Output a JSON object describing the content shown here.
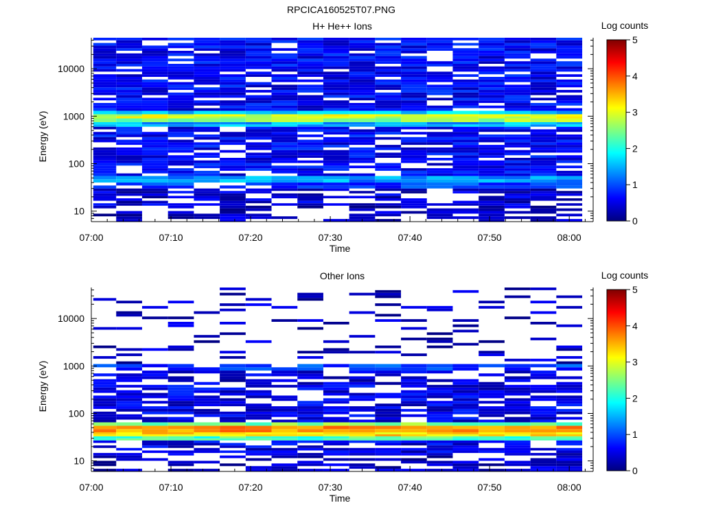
{
  "figure": {
    "title": "RPCICA160525T07.PNG"
  },
  "chart_data": [
    {
      "type": "heatmap",
      "title": "H+ He++ Ions",
      "xlabel": "Time",
      "ylabel": "Energy (eV)",
      "x_tick_labels": [
        "07:00",
        "07:10",
        "07:20",
        "07:30",
        "07:40",
        "07:50",
        "08:00"
      ],
      "x_ticks_minutes": [
        0,
        10,
        20,
        30,
        40,
        50,
        60
      ],
      "xlim_minutes": [
        0,
        63
      ],
      "y_scale": "log",
      "y_tick_labels": [
        "10",
        "100",
        "1000",
        "10000"
      ],
      "y_ticks": [
        10,
        100,
        1000,
        10000
      ],
      "ylim": [
        6,
        45000
      ],
      "colorbar": {
        "label": "Log counts",
        "range": [
          0,
          5
        ],
        "ticks": [
          "0",
          "1",
          "2",
          "3",
          "4",
          "5"
        ]
      },
      "time_bins_minutes": [
        1.5,
        4.75,
        8,
        11.25,
        14.5,
        17.75,
        21,
        24.25,
        27.5,
        30.75,
        34,
        37.25,
        40.5,
        43.75,
        47,
        50.25,
        53.5,
        56.75,
        60
      ],
      "bands": [
        {
          "energy_range": [
            6,
            13
          ],
          "log_counts": 0.3,
          "coverage": 0.55
        },
        {
          "energy_range": [
            13,
            30
          ],
          "log_counts": 0.4,
          "coverage": 0.7
        },
        {
          "energy_range": [
            30,
            40
          ],
          "log_counts": 0.9,
          "coverage": 0.9
        },
        {
          "energy_range": [
            40,
            55
          ],
          "log_counts": 1.4,
          "coverage": 1.0
        },
        {
          "energy_range": [
            55,
            600
          ],
          "log_counts": 0.6,
          "coverage": 0.8
        },
        {
          "energy_range": [
            600,
            750
          ],
          "log_counts": 1.5,
          "coverage": 1.0
        },
        {
          "energy_range": [
            750,
            900
          ],
          "log_counts": 2.6,
          "coverage": 1.0
        },
        {
          "energy_range": [
            900,
            1100
          ],
          "log_counts": 2.9,
          "coverage": 1.0
        },
        {
          "energy_range": [
            1100,
            1300
          ],
          "log_counts": 1.6,
          "coverage": 1.0
        },
        {
          "energy_range": [
            1300,
            45000
          ],
          "log_counts": 0.6,
          "coverage": 0.85
        }
      ]
    },
    {
      "type": "heatmap",
      "title": "Other Ions",
      "xlabel": "Time",
      "ylabel": "Energy (eV)",
      "x_tick_labels": [
        "07:00",
        "07:10",
        "07:20",
        "07:30",
        "07:40",
        "07:50",
        "08:00"
      ],
      "x_ticks_minutes": [
        0,
        10,
        20,
        30,
        40,
        50,
        60
      ],
      "xlim_minutes": [
        0,
        63
      ],
      "y_scale": "log",
      "y_tick_labels": [
        "10",
        "100",
        "1000",
        "10000"
      ],
      "y_ticks": [
        10,
        100,
        1000,
        10000
      ],
      "ylim": [
        6,
        45000
      ],
      "colorbar": {
        "label": "Log counts",
        "range": [
          0,
          5
        ],
        "ticks": [
          "0",
          "1",
          "2",
          "3",
          "4",
          "5"
        ]
      },
      "time_bins_minutes": [
        1.5,
        4.75,
        8,
        11.25,
        14.5,
        17.75,
        21,
        24.25,
        27.5,
        30.75,
        34,
        37.25,
        40.5,
        43.75,
        47,
        50.25,
        53.5,
        56.75,
        60
      ],
      "bands": [
        {
          "energy_range": [
            6,
            13
          ],
          "log_counts": 0.3,
          "coverage": 0.6
        },
        {
          "energy_range": [
            13,
            27
          ],
          "log_counts": 0.5,
          "coverage": 0.75
        },
        {
          "energy_range": [
            27,
            33
          ],
          "log_counts": 2.2,
          "coverage": 1.0
        },
        {
          "energy_range": [
            33,
            40
          ],
          "log_counts": 3.3,
          "coverage": 1.0
        },
        {
          "energy_range": [
            40,
            55
          ],
          "log_counts": 3.6,
          "coverage": 1.0
        },
        {
          "energy_range": [
            55,
            65
          ],
          "log_counts": 2.5,
          "coverage": 1.0
        },
        {
          "energy_range": [
            65,
            400
          ],
          "log_counts": 0.5,
          "coverage": 0.75
        },
        {
          "energy_range": [
            400,
            800
          ],
          "log_counts": 0.4,
          "coverage": 0.55
        },
        {
          "energy_range": [
            800,
            1100
          ],
          "log_counts": 0.9,
          "coverage": 0.9
        },
        {
          "energy_range": [
            1100,
            45000
          ],
          "log_counts": 0.3,
          "coverage": 0.15
        }
      ]
    }
  ]
}
